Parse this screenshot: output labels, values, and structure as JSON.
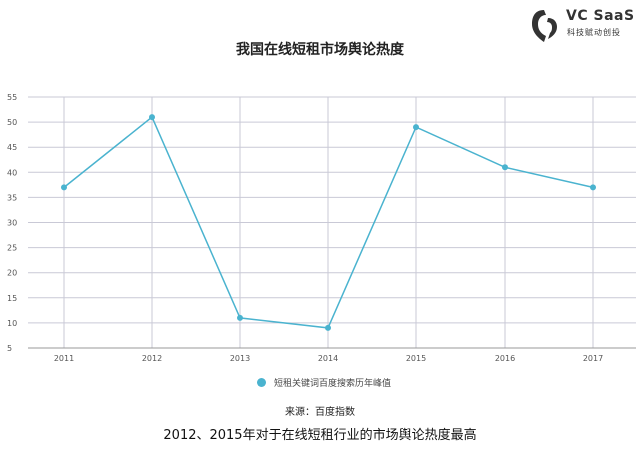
{
  "brand": {
    "name": "VC SaaS",
    "tagline": "科技赋动创投",
    "logo_icon": "vc-saas-logo-mark"
  },
  "chart_data": {
    "type": "line",
    "title": "我国在线短租市场舆论热度",
    "categories": [
      "2011",
      "2012",
      "2013",
      "2014",
      "2015",
      "2016",
      "2017"
    ],
    "series": [
      {
        "name": "短租关键词百度搜索历年峰值",
        "values": [
          37,
          51,
          11,
          9,
          49,
          41,
          37
        ],
        "color": "#4ab3cf"
      }
    ],
    "yticks": [
      5,
      10,
      15,
      20,
      25,
      30,
      35,
      40,
      45,
      50,
      55
    ],
    "ylim": [
      5,
      55
    ],
    "xlabel": "",
    "ylabel": "",
    "grid": true,
    "legend_position": "bottom"
  },
  "source": "来源：百度指数",
  "caption": "2012、2015年对于在线短租行业的市场舆论热度最高",
  "colors": {
    "series": "#4ab3cf",
    "grid": "#c9c9d6",
    "axis_text": "#555555"
  }
}
